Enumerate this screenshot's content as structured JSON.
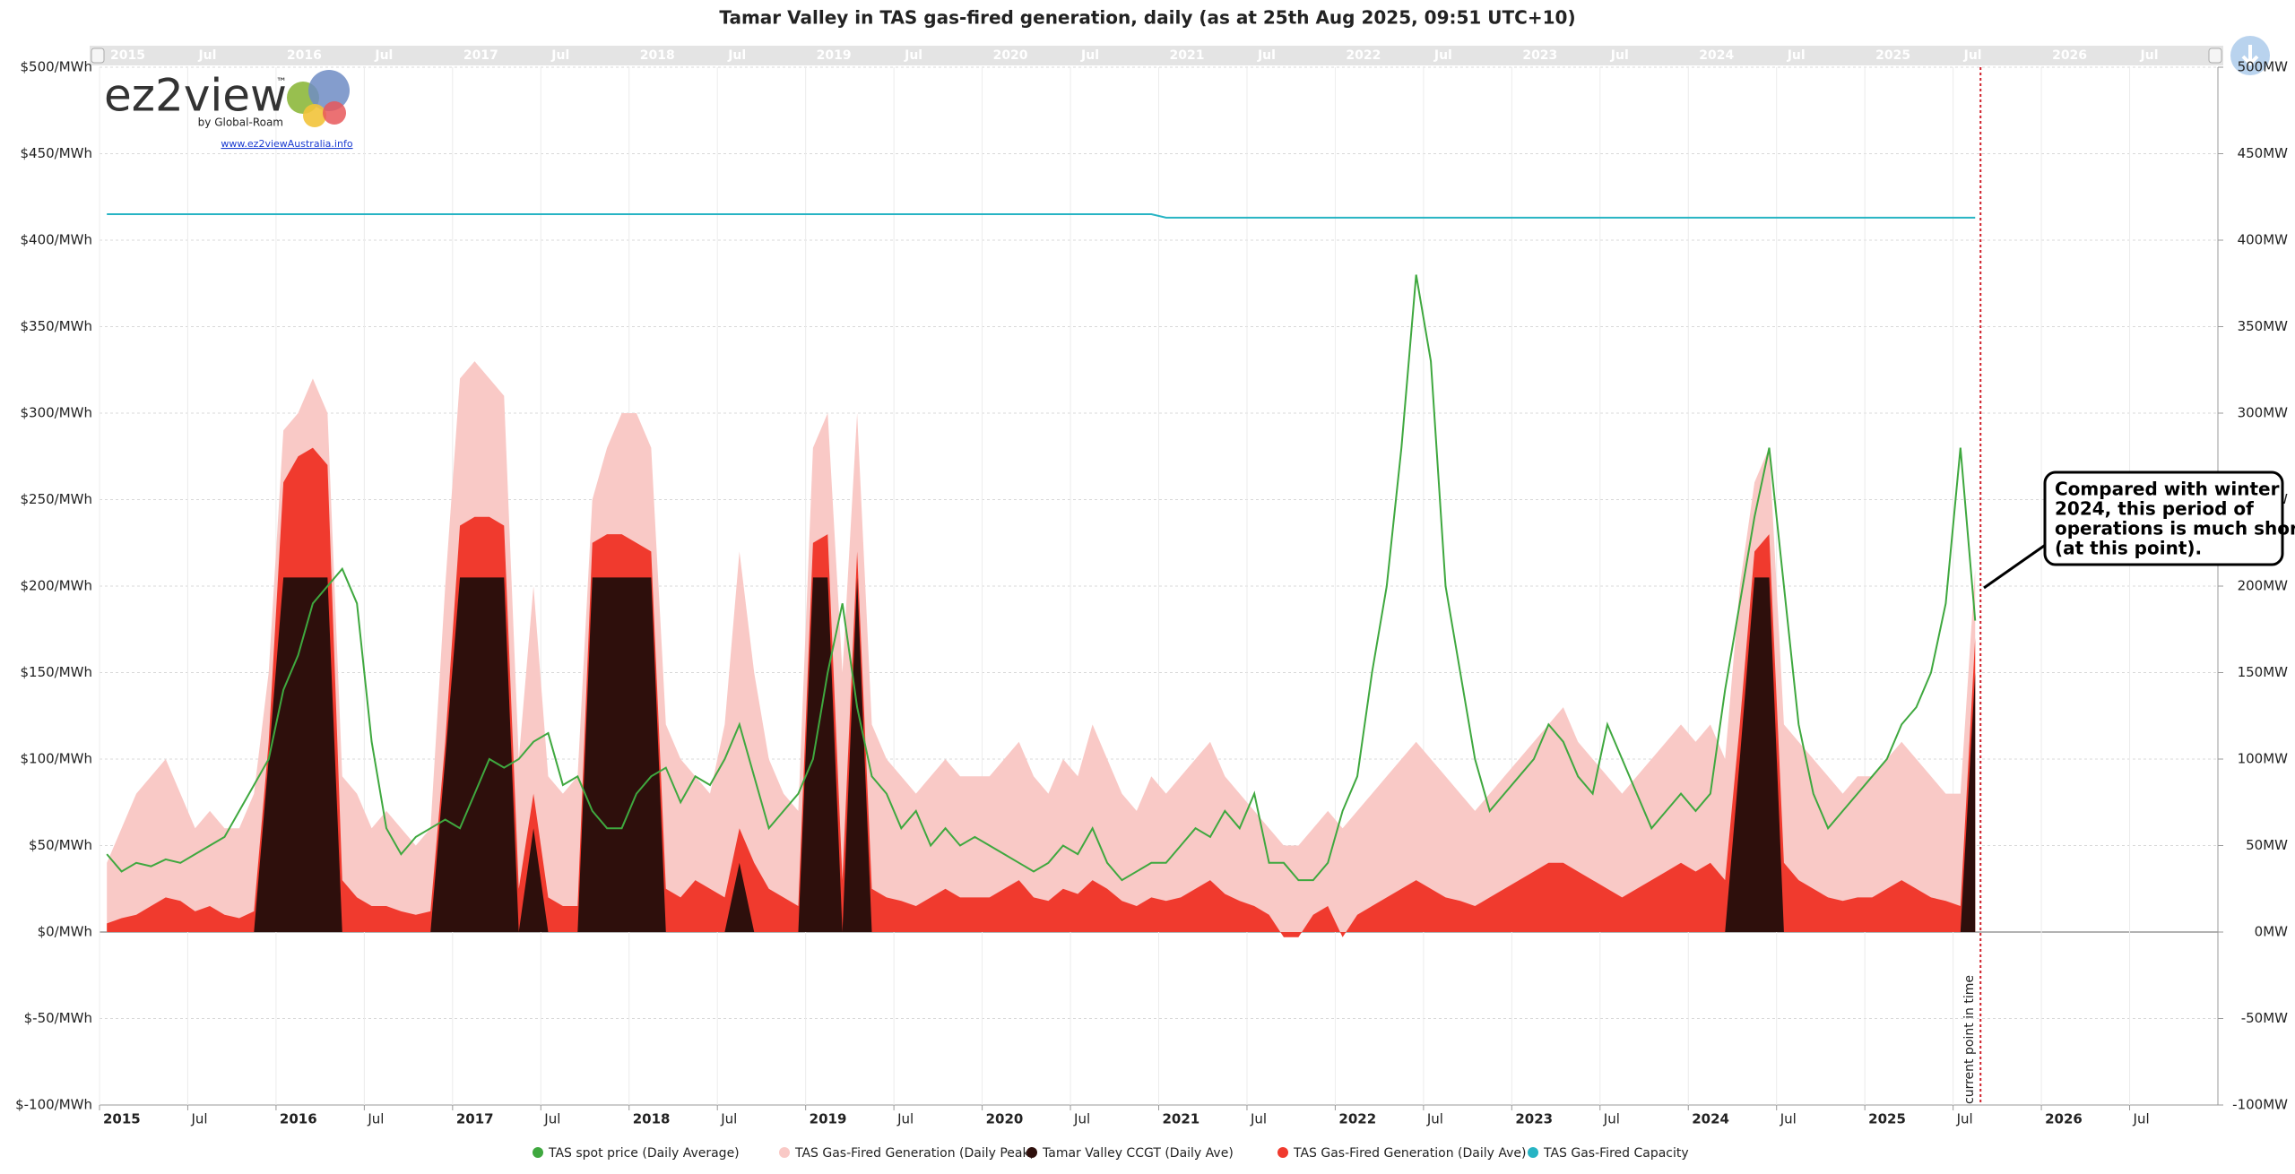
{
  "logo": {
    "brand": "ez2view",
    "mark": "™",
    "by": "by Global-Roam",
    "url": "www.ez2viewAustralia.info"
  },
  "chart_data": {
    "type": "line",
    "title": "Tamar Valley in TAS gas-fired generation, daily (as at 25th Aug 2025, 09:51 UTC+10)",
    "annotations": {
      "callout": [
        "Compared with winter",
        "2024, this period of",
        "operations is much shorter",
        "(at this point)."
      ],
      "now": "current point in time"
    },
    "x": [
      "2015-01",
      "2015-02",
      "2015-03",
      "2015-04",
      "2015-05",
      "2015-06",
      "2015-07",
      "2015-08",
      "2015-09",
      "2015-10",
      "2015-11",
      "2015-12",
      "2016-01",
      "2016-02",
      "2016-03",
      "2016-04",
      "2016-05",
      "2016-06",
      "2016-07",
      "2016-08",
      "2016-09",
      "2016-10",
      "2016-11",
      "2016-12",
      "2017-01",
      "2017-02",
      "2017-03",
      "2017-04",
      "2017-05",
      "2017-06",
      "2017-07",
      "2017-08",
      "2017-09",
      "2017-10",
      "2017-11",
      "2017-12",
      "2018-01",
      "2018-02",
      "2018-03",
      "2018-04",
      "2018-05",
      "2018-06",
      "2018-07",
      "2018-08",
      "2018-09",
      "2018-10",
      "2018-11",
      "2018-12",
      "2019-01",
      "2019-02",
      "2019-03",
      "2019-04",
      "2019-05",
      "2019-06",
      "2019-07",
      "2019-08",
      "2019-09",
      "2019-10",
      "2019-11",
      "2019-12",
      "2020-01",
      "2020-02",
      "2020-03",
      "2020-04",
      "2020-05",
      "2020-06",
      "2020-07",
      "2020-08",
      "2020-09",
      "2020-10",
      "2020-11",
      "2020-12",
      "2021-01",
      "2021-02",
      "2021-03",
      "2021-04",
      "2021-05",
      "2021-06",
      "2021-07",
      "2021-08",
      "2021-09",
      "2021-10",
      "2021-11",
      "2021-12",
      "2022-01",
      "2022-02",
      "2022-03",
      "2022-04",
      "2022-05",
      "2022-06",
      "2022-07",
      "2022-08",
      "2022-09",
      "2022-10",
      "2022-11",
      "2022-12",
      "2023-01",
      "2023-02",
      "2023-03",
      "2023-04",
      "2023-05",
      "2023-06",
      "2023-07",
      "2023-08",
      "2023-09",
      "2023-10",
      "2023-11",
      "2023-12",
      "2024-01",
      "2024-02",
      "2024-03",
      "2024-04",
      "2024-05",
      "2024-06",
      "2024-07",
      "2024-08",
      "2024-09",
      "2024-10",
      "2024-11",
      "2024-12",
      "2025-01",
      "2025-02",
      "2025-03",
      "2025-04",
      "2025-05",
      "2025-06",
      "2025-07",
      "2025-08"
    ],
    "series": [
      {
        "name": "TAS spot price (Daily Average)",
        "color": "#3fa83f",
        "style": "line",
        "values": [
          45,
          35,
          40,
          38,
          42,
          40,
          45,
          50,
          55,
          70,
          85,
          100,
          140,
          160,
          190,
          200,
          210,
          190,
          110,
          60,
          45,
          55,
          60,
          65,
          60,
          80,
          100,
          95,
          100,
          110,
          115,
          85,
          90,
          70,
          60,
          60,
          80,
          90,
          95,
          75,
          90,
          85,
          100,
          120,
          90,
          60,
          70,
          80,
          100,
          150,
          190,
          130,
          90,
          80,
          60,
          70,
          50,
          60,
          50,
          55,
          50,
          45,
          40,
          35,
          40,
          50,
          45,
          60,
          40,
          30,
          35,
          40,
          40,
          50,
          60,
          55,
          70,
          60,
          80,
          40,
          40,
          30,
          30,
          40,
          70,
          90,
          150,
          200,
          280,
          380,
          330,
          200,
          150,
          100,
          70,
          80,
          90,
          100,
          120,
          110,
          90,
          80,
          120,
          100,
          80,
          60,
          70,
          80,
          70,
          80,
          140,
          190,
          240,
          280,
          200,
          120,
          80,
          60,
          70,
          80,
          90,
          100,
          120,
          130,
          150,
          190,
          280,
          180
        ]
      },
      {
        "name": "TAS Gas-Fired Generation (Daily Peak)",
        "color": "#f9c9c6",
        "style": "area",
        "axis": "y2",
        "values": [
          40,
          60,
          80,
          90,
          100,
          80,
          60,
          70,
          60,
          60,
          80,
          150,
          290,
          300,
          320,
          300,
          90,
          80,
          60,
          70,
          60,
          50,
          60,
          200,
          320,
          330,
          320,
          310,
          100,
          200,
          90,
          80,
          90,
          250,
          280,
          300,
          300,
          280,
          120,
          100,
          90,
          80,
          120,
          220,
          150,
          100,
          80,
          70,
          280,
          300,
          150,
          300,
          120,
          100,
          90,
          80,
          90,
          100,
          90,
          90,
          90,
          100,
          110,
          90,
          80,
          100,
          90,
          120,
          100,
          80,
          70,
          90,
          80,
          90,
          100,
          110,
          90,
          80,
          70,
          60,
          50,
          50,
          60,
          70,
          60,
          70,
          80,
          90,
          100,
          110,
          100,
          90,
          80,
          70,
          80,
          90,
          100,
          110,
          120,
          130,
          110,
          100,
          90,
          80,
          90,
          100,
          110,
          120,
          110,
          120,
          100,
          200,
          260,
          280,
          120,
          110,
          100,
          90,
          80,
          90,
          90,
          100,
          110,
          100,
          90,
          80,
          80,
          210
        ]
      },
      {
        "name": "Tamar Valley CCGT (Daily Ave)",
        "color": "#2e0f0c",
        "style": "area",
        "axis": "y2",
        "values": [
          0,
          0,
          0,
          0,
          0,
          0,
          0,
          0,
          0,
          0,
          0,
          100,
          205,
          205,
          205,
          205,
          0,
          0,
          0,
          0,
          0,
          0,
          0,
          100,
          205,
          205,
          205,
          205,
          0,
          60,
          0,
          0,
          0,
          205,
          205,
          205,
          205,
          205,
          0,
          0,
          0,
          0,
          0,
          40,
          0,
          0,
          0,
          0,
          205,
          205,
          0,
          205,
          0,
          0,
          0,
          0,
          0,
          0,
          0,
          0,
          0,
          0,
          0,
          0,
          0,
          0,
          0,
          0,
          0,
          0,
          0,
          0,
          0,
          0,
          0,
          0,
          0,
          0,
          0,
          0,
          0,
          0,
          0,
          0,
          0,
          0,
          0,
          0,
          0,
          0,
          0,
          0,
          0,
          0,
          0,
          0,
          0,
          0,
          0,
          0,
          0,
          0,
          0,
          0,
          0,
          0,
          0,
          0,
          0,
          0,
          0,
          100,
          205,
          205,
          0,
          0,
          0,
          0,
          0,
          0,
          0,
          0,
          0,
          0,
          0,
          0,
          0,
          150
        ]
      },
      {
        "name": "TAS Gas-Fired Generation (Daily Ave)",
        "color": "#f03a2e",
        "style": "area",
        "axis": "y2",
        "values": [
          5,
          8,
          10,
          15,
          20,
          18,
          12,
          15,
          10,
          8,
          12,
          110,
          260,
          275,
          280,
          270,
          30,
          20,
          15,
          15,
          12,
          10,
          12,
          110,
          235,
          240,
          240,
          235,
          25,
          80,
          20,
          15,
          15,
          225,
          230,
          230,
          225,
          220,
          25,
          20,
          30,
          25,
          20,
          60,
          40,
          25,
          20,
          15,
          225,
          230,
          30,
          220,
          25,
          20,
          18,
          15,
          20,
          25,
          20,
          20,
          20,
          25,
          30,
          20,
          18,
          25,
          22,
          30,
          25,
          18,
          15,
          20,
          18,
          20,
          25,
          30,
          22,
          18,
          15,
          10,
          -3,
          -3,
          10,
          15,
          -3,
          10,
          15,
          20,
          25,
          30,
          25,
          20,
          18,
          15,
          20,
          25,
          30,
          35,
          40,
          40,
          35,
          30,
          25,
          20,
          25,
          30,
          35,
          40,
          35,
          40,
          30,
          120,
          220,
          230,
          40,
          30,
          25,
          20,
          18,
          20,
          20,
          25,
          30,
          25,
          20,
          18,
          15,
          170
        ]
      },
      {
        "name": "TAS Gas-Fired Capacity",
        "color": "#27b4c4",
        "style": "line",
        "axis": "y2",
        "values": [
          415,
          415,
          415,
          415,
          415,
          415,
          415,
          415,
          415,
          415,
          415,
          415,
          415,
          415,
          415,
          415,
          415,
          415,
          415,
          415,
          415,
          415,
          415,
          415,
          415,
          415,
          415,
          415,
          415,
          415,
          415,
          415,
          415,
          415,
          415,
          415,
          415,
          415,
          415,
          415,
          415,
          415,
          415,
          415,
          415,
          415,
          415,
          415,
          415,
          415,
          415,
          415,
          415,
          415,
          415,
          415,
          415,
          415,
          415,
          415,
          415,
          415,
          415,
          415,
          415,
          415,
          415,
          415,
          415,
          415,
          415,
          415,
          413,
          413,
          413,
          413,
          413,
          413,
          413,
          413,
          413,
          413,
          413,
          413,
          413,
          413,
          413,
          413,
          413,
          413,
          413,
          413,
          413,
          413,
          413,
          413,
          413,
          413,
          413,
          413,
          413,
          413,
          413,
          413,
          413,
          413,
          413,
          413,
          413,
          413,
          413,
          413,
          413,
          413,
          413,
          413,
          413,
          413,
          413,
          413,
          413,
          413,
          413,
          413,
          413,
          413,
          413,
          413
        ]
      }
    ],
    "xlim": [
      "2015-01",
      "2026-12"
    ],
    "xticks": [
      {
        "value": "2015-01",
        "label": "2015"
      },
      {
        "value": "2015-07",
        "label": "Jul"
      },
      {
        "value": "2016-01",
        "label": "2016"
      },
      {
        "value": "2016-07",
        "label": "Jul"
      },
      {
        "value": "2017-01",
        "label": "2017"
      },
      {
        "value": "2017-07",
        "label": "Jul"
      },
      {
        "value": "2018-01",
        "label": "2018"
      },
      {
        "value": "2018-07",
        "label": "Jul"
      },
      {
        "value": "2019-01",
        "label": "2019"
      },
      {
        "value": "2019-07",
        "label": "Jul"
      },
      {
        "value": "2020-01",
        "label": "2020"
      },
      {
        "value": "2020-07",
        "label": "Jul"
      },
      {
        "value": "2021-01",
        "label": "2021"
      },
      {
        "value": "2021-07",
        "label": "Jul"
      },
      {
        "value": "2022-01",
        "label": "2022"
      },
      {
        "value": "2022-07",
        "label": "Jul"
      },
      {
        "value": "2023-01",
        "label": "2023"
      },
      {
        "value": "2023-07",
        "label": "Jul"
      },
      {
        "value": "2024-01",
        "label": "2024"
      },
      {
        "value": "2024-07",
        "label": "Jul"
      },
      {
        "value": "2025-01",
        "label": "2025"
      },
      {
        "value": "2025-07",
        "label": "Jul"
      },
      {
        "value": "2026-01",
        "label": "2026"
      },
      {
        "value": "2026-07",
        "label": "Jul"
      }
    ],
    "ylim": [
      -100,
      500
    ],
    "yticks": [
      {
        "value": -100,
        "label": "$-100/MWh"
      },
      {
        "value": -50,
        "label": "$-50/MWh"
      },
      {
        "value": 0,
        "label": "$0/MWh"
      },
      {
        "value": 50,
        "label": "$50/MWh"
      },
      {
        "value": 100,
        "label": "$100/MWh"
      },
      {
        "value": 150,
        "label": "$150/MWh"
      },
      {
        "value": 200,
        "label": "$200/MWh"
      },
      {
        "value": 250,
        "label": "$250/MWh"
      },
      {
        "value": 300,
        "label": "$300/MWh"
      },
      {
        "value": 350,
        "label": "$350/MWh"
      },
      {
        "value": 400,
        "label": "$400/MWh"
      },
      {
        "value": 450,
        "label": "$450/MWh"
      },
      {
        "value": 500,
        "label": "$500/MWh"
      }
    ],
    "y2lim": [
      -100,
      500
    ],
    "y2ticks": [
      {
        "value": -100,
        "label": "-100MW"
      },
      {
        "value": -50,
        "label": "-50MW"
      },
      {
        "value": 0,
        "label": "0MW"
      },
      {
        "value": 50,
        "label": "50MW"
      },
      {
        "value": 100,
        "label": "100MW"
      },
      {
        "value": 150,
        "label": "150MW"
      },
      {
        "value": 200,
        "label": "200MW"
      },
      {
        "value": 250,
        "label": "250MW"
      },
      {
        "value": 300,
        "label": "300MW"
      },
      {
        "value": 350,
        "label": "350MW"
      },
      {
        "value": 400,
        "label": "400MW"
      },
      {
        "value": 450,
        "label": "450MW"
      },
      {
        "value": 500,
        "label": "500MW"
      }
    ],
    "grid": true
  }
}
